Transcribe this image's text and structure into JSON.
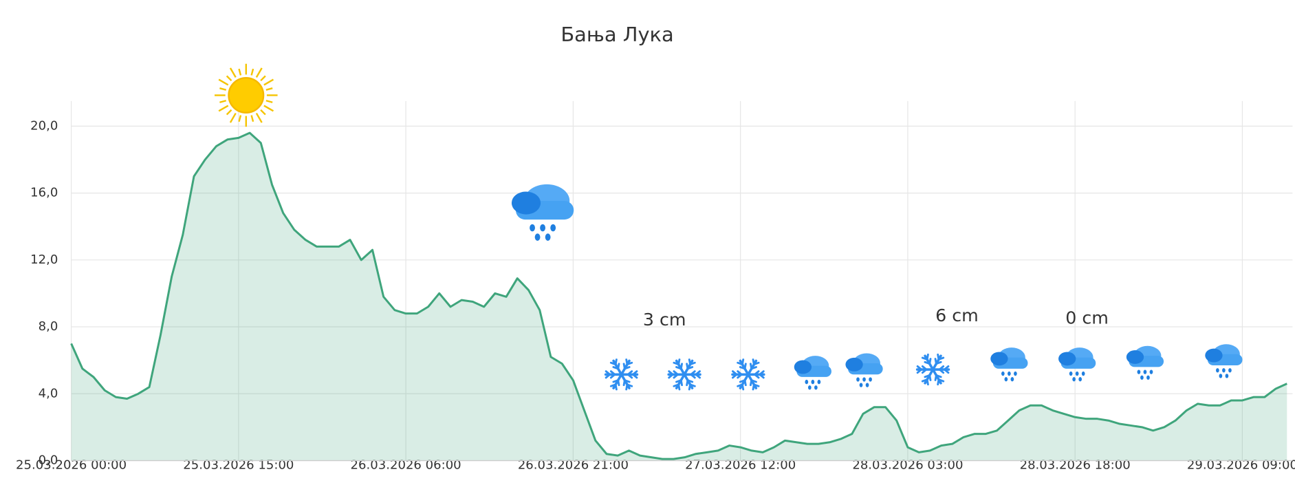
{
  "chart_data": {
    "type": "area",
    "title": "Бања Лука",
    "x": [
      "25.03.2026 00:00",
      "25.03.2026 01:00",
      "25.03.2026 02:00",
      "25.03.2026 03:00",
      "25.03.2026 04:00",
      "25.03.2026 05:00",
      "25.03.2026 06:00",
      "25.03.2026 07:00",
      "25.03.2026 08:00",
      "25.03.2026 09:00",
      "25.03.2026 10:00",
      "25.03.2026 11:00",
      "25.03.2026 12:00",
      "25.03.2026 13:00",
      "25.03.2026 14:00",
      "25.03.2026 15:00",
      "25.03.2026 16:00",
      "25.03.2026 17:00",
      "25.03.2026 18:00",
      "25.03.2026 19:00",
      "25.03.2026 20:00",
      "25.03.2026 21:00",
      "25.03.2026 22:00",
      "25.03.2026 23:00",
      "26.03.2026 00:00",
      "26.03.2026 01:00",
      "26.03.2026 02:00",
      "26.03.2026 03:00",
      "26.03.2026 04:00",
      "26.03.2026 05:00",
      "26.03.2026 06:00",
      "26.03.2026 07:00",
      "26.03.2026 08:00",
      "26.03.2026 09:00",
      "26.03.2026 10:00",
      "26.03.2026 11:00",
      "26.03.2026 12:00",
      "26.03.2026 13:00",
      "26.03.2026 14:00",
      "26.03.2026 15:00",
      "26.03.2026 16:00",
      "26.03.2026 17:00",
      "26.03.2026 18:00",
      "26.03.2026 19:00",
      "26.03.2026 20:00",
      "26.03.2026 21:00",
      "26.03.2026 22:00",
      "26.03.2026 23:00",
      "27.03.2026 00:00",
      "27.03.2026 01:00",
      "27.03.2026 02:00",
      "27.03.2026 03:00",
      "27.03.2026 04:00",
      "27.03.2026 05:00",
      "27.03.2026 06:00",
      "27.03.2026 07:00",
      "27.03.2026 08:00",
      "27.03.2026 09:00",
      "27.03.2026 10:00",
      "27.03.2026 11:00",
      "27.03.2026 12:00",
      "27.03.2026 13:00",
      "27.03.2026 14:00",
      "27.03.2026 15:00",
      "27.03.2026 16:00",
      "27.03.2026 17:00",
      "27.03.2026 18:00",
      "27.03.2026 19:00",
      "27.03.2026 20:00",
      "27.03.2026 21:00",
      "27.03.2026 22:00",
      "27.03.2026 23:00",
      "28.03.2026 00:00",
      "28.03.2026 01:00",
      "28.03.2026 02:00",
      "28.03.2026 03:00",
      "28.03.2026 04:00",
      "28.03.2026 05:00",
      "28.03.2026 06:00",
      "28.03.2026 07:00",
      "28.03.2026 08:00",
      "28.03.2026 09:00",
      "28.03.2026 10:00",
      "28.03.2026 11:00",
      "28.03.2026 12:00",
      "28.03.2026 13:00",
      "28.03.2026 14:00",
      "28.03.2026 15:00",
      "28.03.2026 16:00",
      "28.03.2026 17:00",
      "28.03.2026 18:00",
      "28.03.2026 19:00",
      "28.03.2026 20:00",
      "28.03.2026 21:00",
      "28.03.2026 22:00",
      "28.03.2026 23:00",
      "29.03.2026 00:00",
      "29.03.2026 01:00",
      "29.03.2026 02:00",
      "29.03.2026 03:00",
      "29.03.2026 04:00",
      "29.03.2026 05:00",
      "29.03.2026 06:00",
      "29.03.2026 07:00",
      "29.03.2026 08:00",
      "29.03.2026 09:00",
      "29.03.2026 10:00",
      "29.03.2026 11:00",
      "29.03.2026 12:00",
      "29.03.2026 13:00"
    ],
    "values": [
      7.0,
      5.5,
      5.0,
      4.2,
      3.8,
      3.7,
      4.0,
      4.4,
      7.5,
      11.0,
      13.5,
      17.0,
      18.0,
      18.8,
      19.2,
      19.3,
      19.6,
      19.0,
      16.5,
      14.8,
      13.8,
      13.2,
      12.8,
      12.8,
      12.8,
      13.2,
      12.0,
      12.6,
      9.8,
      9.0,
      8.8,
      8.8,
      9.2,
      10.0,
      9.2,
      9.6,
      9.5,
      9.2,
      10.0,
      9.8,
      10.9,
      10.2,
      9.0,
      6.2,
      5.8,
      4.8,
      3.0,
      1.2,
      0.4,
      0.3,
      0.6,
      0.3,
      0.2,
      0.1,
      0.1,
      0.2,
      0.4,
      0.5,
      0.6,
      0.9,
      0.8,
      0.6,
      0.5,
      0.8,
      1.2,
      1.1,
      1.0,
      1.0,
      1.1,
      1.3,
      1.6,
      2.8,
      3.2,
      3.2,
      2.4,
      0.8,
      0.5,
      0.6,
      0.9,
      1.0,
      1.4,
      1.6,
      1.6,
      1.8,
      2.4,
      3.0,
      3.3,
      3.3,
      3.0,
      2.8,
      2.6,
      2.5,
      2.5,
      2.4,
      2.2,
      2.1,
      2.0,
      1.8,
      2.0,
      2.4,
      3.0,
      3.4,
      3.3,
      3.3,
      3.6,
      3.6,
      3.8,
      3.8,
      4.3,
      4.6
    ],
    "color": "#3fa57c",
    "xlim": [
      "25.03.2026 00:00",
      "29.03.2026 13:30"
    ],
    "xticks": [
      "25.03.2026 00:00",
      "25.03.2026 15:00",
      "26.03.2026 06:00",
      "26.03.2026 21:00",
      "27.03.2026 12:00",
      "28.03.2026 03:00",
      "28.03.2026 18:00",
      "29.03.2026 09:00"
    ],
    "ylim": [
      0,
      21.5
    ],
    "yticks": [
      {
        "value": 0,
        "label": "0,0"
      },
      {
        "value": 4,
        "label": "4,0"
      },
      {
        "value": 8,
        "label": "8,0"
      },
      {
        "value": 12,
        "label": "12,0"
      },
      {
        "value": 16,
        "label": "16,0"
      },
      {
        "value": 20,
        "label": "20,0"
      }
    ],
    "annotations": [
      "3 cm",
      "6 cm",
      "0 cm"
    ],
    "grid": true
  }
}
